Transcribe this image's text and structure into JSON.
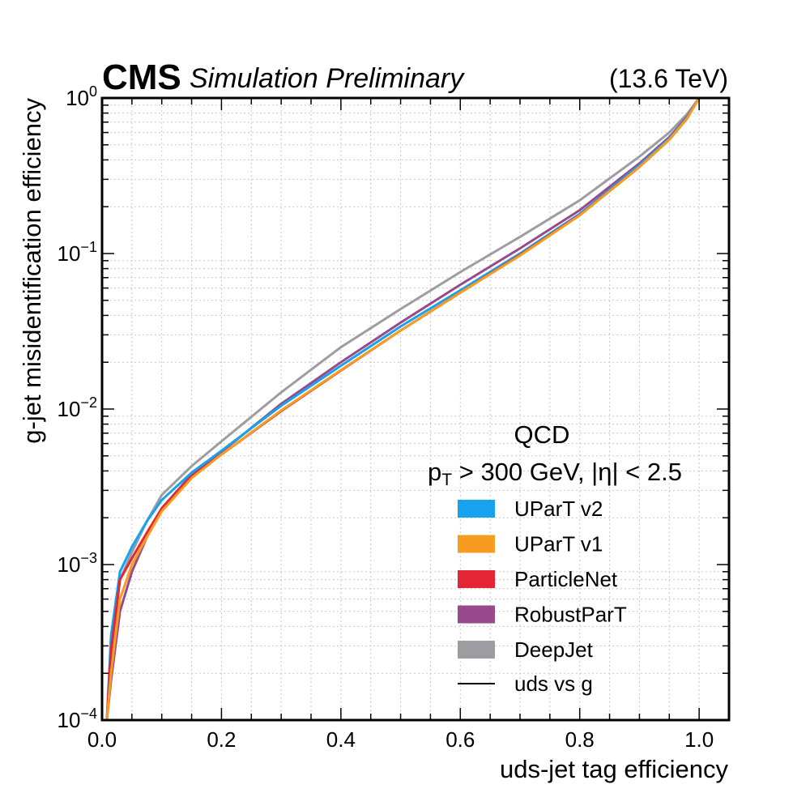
{
  "header": {
    "experiment": "CMS",
    "status": "Simulation Preliminary",
    "energy": "(13.6 TeV)"
  },
  "chart_data": {
    "type": "line",
    "title": "",
    "xlabel": "uds-jet tag efficiency",
    "ylabel": "g-jet misidentification efficiency",
    "xlim": [
      0.0,
      1.05
    ],
    "ylim": [
      0.0001,
      1.0
    ],
    "yscale": "log",
    "grid": true,
    "x_ticks": [
      "0.0",
      "0.2",
      "0.4",
      "0.6",
      "0.8",
      "1.0"
    ],
    "x_tick_values": [
      0.0,
      0.2,
      0.4,
      0.6,
      0.8,
      1.0
    ],
    "y_ticks": [
      {
        "value": 1.0,
        "base": "10",
        "exp": "0"
      },
      {
        "value": 0.1,
        "base": "10",
        "exp": "−1"
      },
      {
        "value": 0.01,
        "base": "10",
        "exp": "−2"
      },
      {
        "value": 0.001,
        "base": "10",
        "exp": "−3"
      },
      {
        "value": 0.0001,
        "base": "10",
        "exp": "−4"
      }
    ],
    "legend": {
      "placement": "lower-right",
      "title_line1": "QCD",
      "title_line2_pre": "p",
      "title_line2_sub": "T",
      "title_line2_post": " > 300 GeV, |η| < 2.5",
      "style_entry": "uds vs g"
    },
    "x": [
      0.008,
      0.015,
      0.03,
      0.05,
      0.075,
      0.1,
      0.15,
      0.2,
      0.3,
      0.4,
      0.5,
      0.6,
      0.7,
      0.8,
      0.9,
      0.95,
      0.98,
      1.0
    ],
    "series": [
      {
        "name": "UParT v2",
        "color": "#17a2ef",
        "values": [
          0.0001,
          0.00035,
          0.0009,
          0.0013,
          0.0019,
          0.0026,
          0.0039,
          0.0054,
          0.0105,
          0.019,
          0.034,
          0.058,
          0.1,
          0.18,
          0.37,
          0.55,
          0.75,
          1.0
        ]
      },
      {
        "name": "UParT v1",
        "color": "#f89c20",
        "values": [
          0.0001,
          0.0002,
          0.0006,
          0.001,
          0.0015,
          0.0022,
          0.0036,
          0.0051,
          0.0098,
          0.0178,
          0.032,
          0.056,
          0.097,
          0.176,
          0.36,
          0.54,
          0.74,
          1.0
        ]
      },
      {
        "name": "ParticleNet",
        "color": "#e42536",
        "values": [
          0.0001,
          0.00028,
          0.0008,
          0.0011,
          0.0016,
          0.0023,
          0.0037,
          0.0051,
          0.0097,
          0.0177,
          0.032,
          0.056,
          0.098,
          0.177,
          0.36,
          0.54,
          0.74,
          1.0
        ]
      },
      {
        "name": "RobustParT",
        "color": "#964a8b",
        "values": [
          0.0001,
          0.00018,
          0.0005,
          0.0009,
          0.0015,
          0.0023,
          0.0038,
          0.0053,
          0.0108,
          0.02,
          0.036,
          0.063,
          0.108,
          0.19,
          0.38,
          0.56,
          0.76,
          1.0
        ]
      },
      {
        "name": "DeepJet",
        "color": "#9c9ca1",
        "values": [
          0.0001,
          0.00025,
          0.0008,
          0.0012,
          0.0019,
          0.0028,
          0.0043,
          0.0062,
          0.0128,
          0.025,
          0.044,
          0.076,
          0.128,
          0.22,
          0.42,
          0.6,
          0.79,
          1.0
        ]
      }
    ]
  }
}
